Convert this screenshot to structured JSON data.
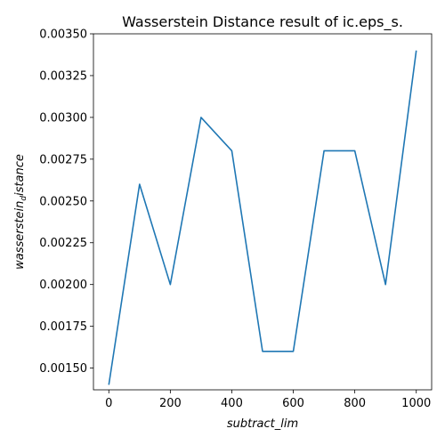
{
  "chart_data": {
    "type": "line",
    "title": "Wasserstein Distance result of ic.eps_s.",
    "xlabel": "subtract_lim",
    "ylabel": "wasserstein_distance",
    "ylabel_display": {
      "base": "wasserstein",
      "sub": "d",
      "tail": "istance"
    },
    "x": [
      0,
      100,
      200,
      300,
      400,
      500,
      600,
      700,
      800,
      900,
      1000
    ],
    "series": [
      {
        "values": [
          0.0014,
          0.0026,
          0.002,
          0.003,
          0.0028,
          0.0016,
          0.0016,
          0.0028,
          0.0028,
          0.002,
          0.0034
        ],
        "color": "#1f77b4"
      }
    ],
    "xlim": [
      -50,
      1050
    ],
    "ylim": [
      0.00137,
      0.0035
    ],
    "xticks": [
      0,
      200,
      400,
      600,
      800,
      1000
    ],
    "xtick_labels": [
      "0",
      "200",
      "400",
      "600",
      "800",
      "1000"
    ],
    "yticks": [
      0.0015,
      0.00175,
      0.002,
      0.00225,
      0.0025,
      0.00275,
      0.003,
      0.00325,
      0.0035
    ],
    "ytick_labels": [
      "0.00150",
      "0.00175",
      "0.00200",
      "0.00225",
      "0.00250",
      "0.00275",
      "0.00300",
      "0.00325",
      "0.00350"
    ],
    "grid": false,
    "legend": "none"
  }
}
